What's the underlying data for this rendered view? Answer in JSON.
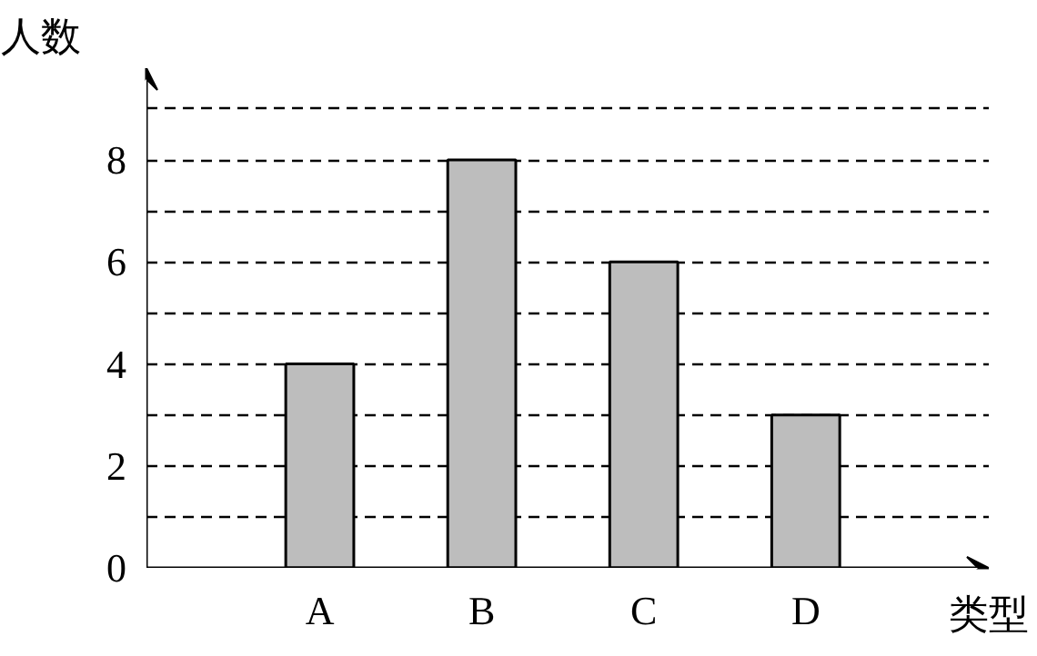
{
  "chart_data": {
    "type": "bar",
    "xlabel": "类型",
    "ylabel": "人数",
    "categories": [
      "A",
      "B",
      "C",
      "D"
    ],
    "values": [
      4,
      8,
      6,
      3
    ],
    "color": "#bdbdbd",
    "ylim": [
      0,
      9.8
    ],
    "yticks": [
      0,
      {
        "value": 1,
        "label": null
      },
      2,
      {
        "value": 3,
        "label": null
      },
      4,
      {
        "value": 5,
        "label": null
      },
      6,
      {
        "value": 7,
        "label": null
      },
      8,
      {
        "value": 9,
        "label": null
      }
    ],
    "grid": "y",
    "line_style": "dashed"
  }
}
